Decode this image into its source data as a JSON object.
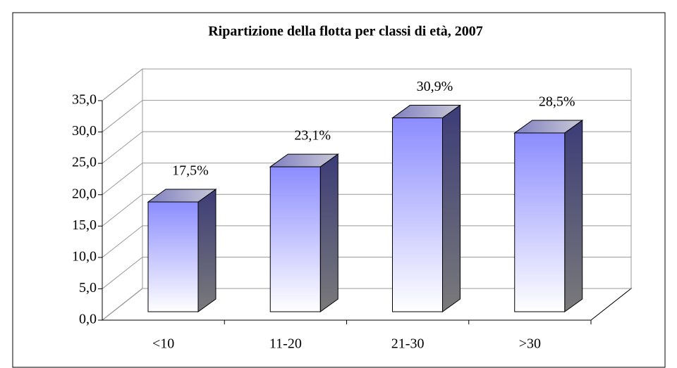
{
  "chart_data": {
    "type": "bar3d",
    "title": "Ripartizione della flotta per classi di età, 2007",
    "categories": [
      "<10",
      "11-20",
      "21-30",
      ">30"
    ],
    "values": [
      17.5,
      23.1,
      30.9,
      28.5
    ],
    "value_labels": [
      "17,5%",
      "23,1%",
      "30,9%",
      "28,5%"
    ],
    "ylim": [
      0,
      35
    ],
    "yticks": [
      {
        "value": 0,
        "label": "0,0"
      },
      {
        "value": 5,
        "label": "5,0"
      },
      {
        "value": 10,
        "label": "10,0"
      },
      {
        "value": 15,
        "label": "15,0"
      },
      {
        "value": 20,
        "label": "20,0"
      },
      {
        "value": 25,
        "label": "25,0"
      },
      {
        "value": 30,
        "label": "30,0"
      },
      {
        "value": 35,
        "label": "35,0"
      }
    ],
    "grid": true
  }
}
